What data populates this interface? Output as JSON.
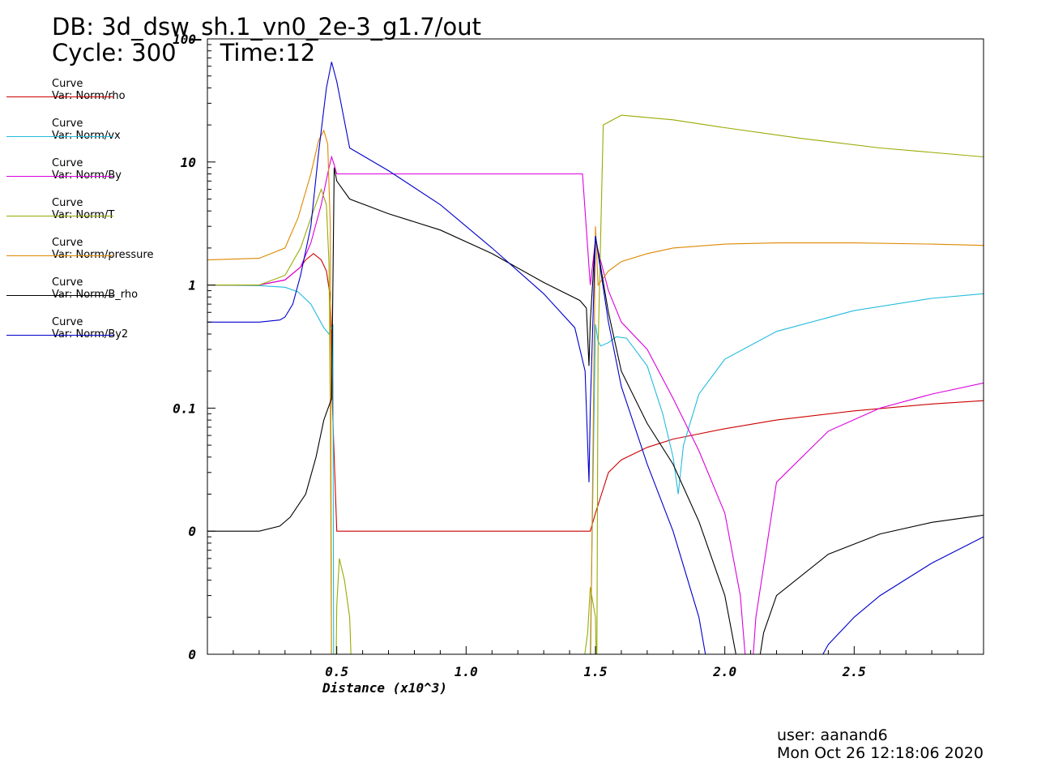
{
  "header": {
    "db": "DB: 3d_dsw_sh.1_vn0_2e-3_g1.7/out",
    "cycle": "Cycle: 300",
    "time": "Time:12"
  },
  "legend": [
    {
      "label": "Curve",
      "var": "Var: Norm/rho",
      "color": "#cc0000"
    },
    {
      "label": "Curve",
      "var": "Var: Norm/vx",
      "color": "#22bbdd"
    },
    {
      "label": "Curve",
      "var": "Var: Norm/By",
      "color": "#dd00dd"
    },
    {
      "label": "Curve",
      "var": "Var: Norm/T",
      "color": "#99aa00"
    },
    {
      "label": "Curve",
      "var": "Var: Norm/pressure",
      "color": "#dd8800"
    },
    {
      "label": "Curve",
      "var": "Var: Norm/B_rho",
      "color": "#000000"
    },
    {
      "label": "Curve",
      "var": "Var: Norm/By2",
      "color": "#0000cc"
    }
  ],
  "footer": {
    "user": "user: aanand6",
    "date": "Mon Oct 26 12:18:06 2020"
  },
  "chart_data": {
    "type": "line",
    "xlabel": "Distance (x10^3)",
    "ylabel": "",
    "xlim": [
      0,
      3.0
    ],
    "ylim_log": [
      0.001,
      100
    ],
    "log_y": true,
    "x_ticks": [
      {
        "v": 0.5,
        "label": "0.5"
      },
      {
        "v": 1.0,
        "label": "1.0"
      },
      {
        "v": 1.5,
        "label": "1.5"
      },
      {
        "v": 2.0,
        "label": "2.0"
      },
      {
        "v": 2.5,
        "label": "2.5"
      }
    ],
    "y_ticks": [
      {
        "v": 100,
        "label": "100"
      },
      {
        "v": 10,
        "label": "10"
      },
      {
        "v": 1,
        "label": "1"
      },
      {
        "v": 0.1,
        "label": "0.1"
      },
      {
        "v": 0.01,
        "label": "0"
      },
      {
        "v": 0.001,
        "label": "0"
      }
    ],
    "series": [
      {
        "name": "Norm/rho",
        "color": "#cc0000",
        "x": [
          0,
          0.2,
          0.3,
          0.36,
          0.38,
          0.41,
          0.44,
          0.46,
          0.475,
          0.48,
          0.483,
          0.49,
          0.5,
          0.7,
          1.0,
          1.3,
          1.45,
          1.48,
          1.5,
          1.55,
          1.6,
          1.7,
          1.8,
          2.0,
          2.2,
          2.5,
          2.8,
          3.0
        ],
        "y": [
          1.0,
          1.0,
          1.1,
          1.4,
          1.6,
          1.8,
          1.6,
          1.3,
          0.8,
          0.4,
          0.11,
          0.04,
          0.01,
          0.01,
          0.01,
          0.01,
          0.01,
          0.01,
          0.014,
          0.03,
          0.038,
          0.048,
          0.056,
          0.068,
          0.08,
          0.095,
          0.108,
          0.115
        ]
      },
      {
        "name": "Norm/vx",
        "color": "#22bbdd",
        "x": [
          0,
          0.2,
          0.3,
          0.35,
          0.4,
          0.45,
          0.47,
          0.485,
          0.488,
          0.49,
          0.495,
          0.5,
          1.47,
          1.48,
          1.5,
          1.51,
          1.52,
          1.55,
          1.58,
          1.62,
          1.7,
          1.76,
          1.8,
          1.82,
          1.84,
          1.9,
          2.0,
          2.2,
          2.5,
          2.8,
          3.0
        ],
        "y": [
          1.0,
          0.99,
          0.96,
          0.88,
          0.7,
          0.45,
          0.4,
          0.48,
          0.001,
          0.0005,
          0.001,
          0.0005,
          0.0005,
          0.001,
          0.48,
          0.35,
          0.32,
          0.34,
          0.38,
          0.37,
          0.22,
          0.09,
          0.04,
          0.02,
          0.05,
          0.13,
          0.25,
          0.42,
          0.62,
          0.78,
          0.85
        ]
      },
      {
        "name": "Norm/By",
        "color": "#dd00dd",
        "x": [
          0,
          0.2,
          0.3,
          0.36,
          0.4,
          0.44,
          0.47,
          0.48,
          0.49,
          0.5,
          1.45,
          1.48,
          1.5,
          1.55,
          1.6,
          1.7,
          1.8,
          1.9,
          2.0,
          2.06,
          2.09,
          2.1,
          2.12,
          2.2,
          2.4,
          2.6,
          2.8,
          3.0
        ],
        "y": [
          1.0,
          1.0,
          1.1,
          1.4,
          2.2,
          4.5,
          9.0,
          11.0,
          9.5,
          8.0,
          8.0,
          1.0,
          2.3,
          0.9,
          0.5,
          0.3,
          0.12,
          0.045,
          0.014,
          0.003,
          0.0005,
          0.0005,
          0.002,
          0.025,
          0.065,
          0.1,
          0.13,
          0.16
        ]
      },
      {
        "name": "Norm/T",
        "color": "#99aa00",
        "x": [
          0,
          0.2,
          0.3,
          0.36,
          0.4,
          0.44,
          0.46,
          0.47,
          0.475,
          0.48,
          0.485,
          0.49,
          0.495,
          0.5,
          0.51,
          0.53,
          0.55,
          0.56,
          1.44,
          1.47,
          1.48,
          1.5,
          1.505,
          1.51,
          1.53,
          1.6,
          1.8,
          2.0,
          2.3,
          2.6,
          3.0
        ],
        "y": [
          1.0,
          1.0,
          1.2,
          2.0,
          3.5,
          6.0,
          4.5,
          1.5,
          0.1,
          0.0005,
          0.001,
          0.0002,
          0.0003,
          0.0025,
          0.006,
          0.004,
          0.002,
          0.0005,
          0.0005,
          0.0015,
          0.0035,
          0.002,
          0.0005,
          0.3,
          20,
          24,
          22,
          19,
          15.5,
          13,
          11
        ]
      },
      {
        "name": "Norm/pressure",
        "color": "#dd8800",
        "x": [
          0,
          0.2,
          0.3,
          0.35,
          0.4,
          0.43,
          0.45,
          0.465,
          0.475,
          0.48,
          0.485,
          0.49,
          0.5,
          1.47,
          1.48,
          1.5,
          1.51,
          1.55,
          1.6,
          1.7,
          1.8,
          2.0,
          2.2,
          2.5,
          2.8,
          3.0
        ],
        "y": [
          1.6,
          1.65,
          2.0,
          3.5,
          8.0,
          15.0,
          18.0,
          14.0,
          3.0,
          0.0005,
          0.001,
          0.0005,
          0.0005,
          0.0005,
          0.0005,
          3.0,
          1.0,
          1.3,
          1.55,
          1.8,
          2.0,
          2.15,
          2.2,
          2.2,
          2.15,
          2.1
        ]
      },
      {
        "name": "Norm/B_rho",
        "color": "#000000",
        "x": [
          0,
          0.2,
          0.28,
          0.32,
          0.38,
          0.42,
          0.45,
          0.48,
          0.485,
          0.49,
          0.5,
          0.55,
          0.7,
          0.9,
          1.1,
          1.3,
          1.44,
          1.465,
          1.475,
          1.48,
          1.5,
          1.55,
          1.6,
          1.7,
          1.8,
          1.9,
          2.0,
          2.07,
          2.1,
          2.12,
          2.15,
          2.2,
          2.4,
          2.6,
          2.8,
          3.0
        ],
        "y": [
          0.01,
          0.01,
          0.011,
          0.013,
          0.02,
          0.04,
          0.08,
          0.12,
          1.0,
          9.0,
          7.0,
          5.0,
          3.8,
          2.8,
          1.8,
          1.05,
          0.75,
          0.65,
          0.22,
          0.5,
          2.5,
          0.6,
          0.2,
          0.075,
          0.035,
          0.012,
          0.003,
          0.0005,
          0.0005,
          0.0006,
          0.0015,
          0.003,
          0.0065,
          0.0095,
          0.0118,
          0.0135
        ]
      },
      {
        "name": "Norm/By2",
        "color": "#0000cc",
        "x": [
          0,
          0.2,
          0.28,
          0.3,
          0.33,
          0.36,
          0.4,
          0.43,
          0.46,
          0.48,
          0.5,
          0.55,
          0.7,
          0.9,
          1.1,
          1.3,
          1.42,
          1.46,
          1.475,
          1.48,
          1.5,
          1.55,
          1.6,
          1.7,
          1.8,
          1.9,
          1.95,
          2.3,
          2.4,
          2.5,
          2.6,
          2.8,
          3.0
        ],
        "y": [
          0.5,
          0.5,
          0.52,
          0.55,
          0.7,
          1.2,
          3.0,
          12.0,
          40.0,
          65.0,
          45.0,
          13.0,
          8.5,
          4.5,
          2.0,
          0.85,
          0.45,
          0.2,
          0.025,
          0.1,
          2.5,
          0.5,
          0.15,
          0.035,
          0.01,
          0.002,
          0.0005,
          0.0005,
          0.0012,
          0.002,
          0.003,
          0.0055,
          0.009
        ]
      }
    ]
  }
}
